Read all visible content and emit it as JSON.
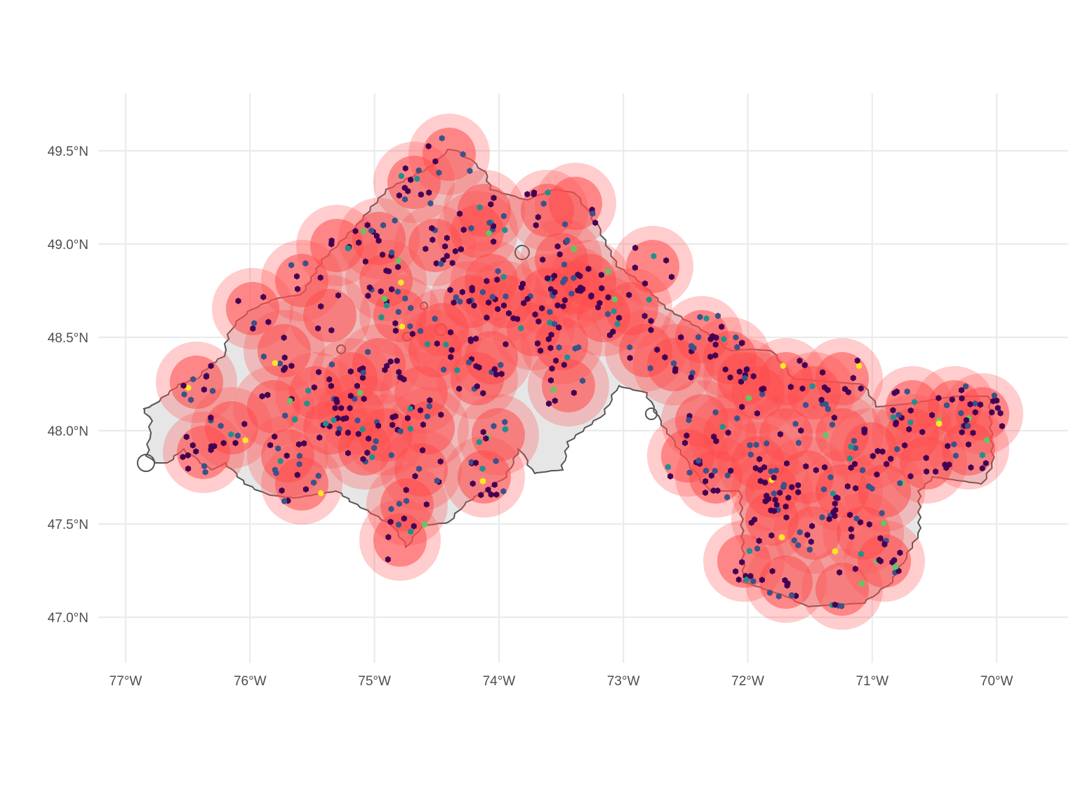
{
  "map": {
    "x_axis": {
      "ticks": [
        {
          "value": -77,
          "label": "77°W"
        },
        {
          "value": -76,
          "label": "76°W"
        },
        {
          "value": -75,
          "label": "75°W"
        },
        {
          "value": -74,
          "label": "74°W"
        },
        {
          "value": -73,
          "label": "73°W"
        },
        {
          "value": -72,
          "label": "72°W"
        },
        {
          "value": -71,
          "label": "71°W"
        },
        {
          "value": -70,
          "label": "70°W"
        }
      ],
      "range": [
        -77.2,
        -69.4
      ]
    },
    "y_axis": {
      "ticks": [
        {
          "value": 49.5,
          "label": "49.5°N"
        },
        {
          "value": 49.0,
          "label": "49.0°N"
        },
        {
          "value": 48.5,
          "label": "48.5°N"
        },
        {
          "value": 48.0,
          "label": "48.0°N"
        },
        {
          "value": 47.5,
          "label": "47.5°N"
        },
        {
          "value": 47.0,
          "label": "47.0°N"
        }
      ],
      "range": [
        46.75,
        49.8
      ]
    },
    "layers": [
      {
        "name": "study-area",
        "fill": "#e6e6e6",
        "outline": "#555555"
      },
      {
        "name": "buffer-zone",
        "fill": "#ff4d4d",
        "opacity": 0.72
      },
      {
        "name": "buffer-outline",
        "stroke": "#a83232"
      },
      {
        "name": "hex-density",
        "palette": [
          "#440154",
          "#3b528b",
          "#21908d",
          "#5dc963",
          "#fde725"
        ]
      }
    ],
    "grid": true,
    "legend": "none"
  }
}
